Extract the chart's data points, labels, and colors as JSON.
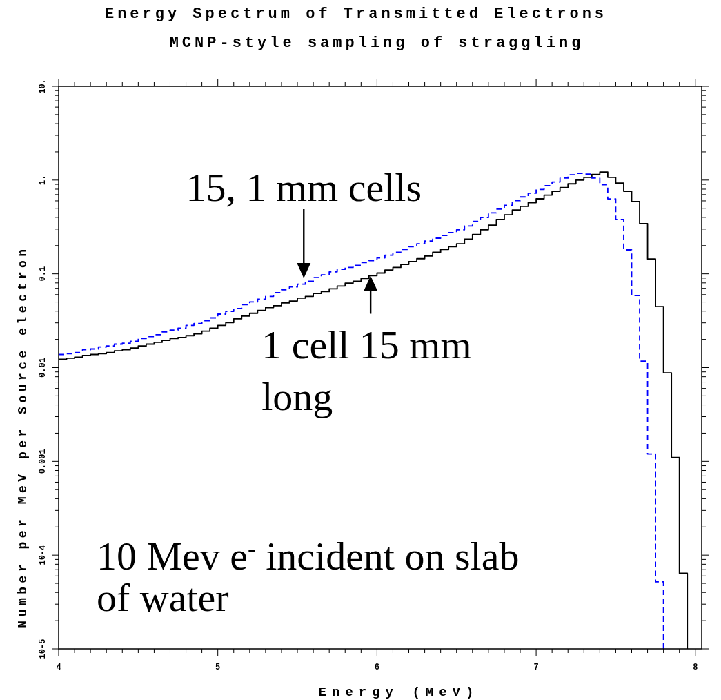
{
  "chart_data": {
    "type": "step",
    "title": "Energy Spectrum of Transmitted Electrons",
    "subtitle": "MCNP-style sampling of straggling",
    "xlabel": "Energy (MeV)",
    "ylabel": "Number per MeV per Source electron",
    "log": "y",
    "grid": false,
    "xlim": [
      4,
      8.04
    ],
    "ylim": [
      1e-05,
      10
    ],
    "xticks": [
      4,
      {
        "value": 4.1,
        "label": null
      },
      {
        "value": 4.2,
        "label": null
      },
      {
        "value": 4.3,
        "label": null
      },
      {
        "value": 4.4,
        "label": null
      },
      {
        "value": 4.5,
        "label": null
      },
      {
        "value": 4.6,
        "label": null
      },
      {
        "value": 4.7,
        "label": null
      },
      {
        "value": 4.8,
        "label": null
      },
      {
        "value": 4.9,
        "label": null
      },
      5,
      {
        "value": 5.1,
        "label": null
      },
      {
        "value": 5.2,
        "label": null
      },
      {
        "value": 5.3,
        "label": null
      },
      {
        "value": 5.4,
        "label": null
      },
      {
        "value": 5.5,
        "label": null
      },
      {
        "value": 5.6,
        "label": null
      },
      {
        "value": 5.7,
        "label": null
      },
      {
        "value": 5.8,
        "label": null
      },
      {
        "value": 5.9,
        "label": null
      },
      6,
      {
        "value": 6.1,
        "label": null
      },
      {
        "value": 6.2,
        "label": null
      },
      {
        "value": 6.3,
        "label": null
      },
      {
        "value": 6.4,
        "label": null
      },
      {
        "value": 6.5,
        "label": null
      },
      {
        "value": 6.6,
        "label": null
      },
      {
        "value": 6.7,
        "label": null
      },
      {
        "value": 6.8,
        "label": null
      },
      {
        "value": 6.9,
        "label": null
      },
      7,
      {
        "value": 7.1,
        "label": null
      },
      {
        "value": 7.2,
        "label": null
      },
      {
        "value": 7.3,
        "label": null
      },
      {
        "value": 7.4,
        "label": null
      },
      {
        "value": 7.5,
        "label": null
      },
      {
        "value": 7.6,
        "label": null
      },
      {
        "value": 7.7,
        "label": null
      },
      {
        "value": 7.8,
        "label": null
      },
      {
        "value": 7.9,
        "label": null
      },
      8
    ],
    "yticks": [
      {
        "value": 1e-05,
        "label": "10-5"
      },
      {
        "value": 2e-05,
        "label": null
      },
      {
        "value": 3e-05,
        "label": null
      },
      {
        "value": 4e-05,
        "label": null
      },
      {
        "value": 5e-05,
        "label": null
      },
      {
        "value": 6e-05,
        "label": null
      },
      {
        "value": 7e-05,
        "label": null
      },
      {
        "value": 8e-05,
        "label": null
      },
      {
        "value": 9e-05,
        "label": null
      },
      {
        "value": 0.0001,
        "label": "10-4"
      },
      {
        "value": 0.0002,
        "label": null
      },
      {
        "value": 0.0003,
        "label": null
      },
      {
        "value": 0.0004,
        "label": null
      },
      {
        "value": 0.0005,
        "label": null
      },
      {
        "value": 0.0006,
        "label": null
      },
      {
        "value": 0.0007,
        "label": null
      },
      {
        "value": 0.0008,
        "label": null
      },
      {
        "value": 0.0009,
        "label": null
      },
      {
        "value": 0.001,
        "label": "0.001"
      },
      {
        "value": 0.002,
        "label": null
      },
      {
        "value": 0.003,
        "label": null
      },
      {
        "value": 0.004,
        "label": null
      },
      {
        "value": 0.005,
        "label": null
      },
      {
        "value": 0.006,
        "label": null
      },
      {
        "value": 0.007,
        "label": null
      },
      {
        "value": 0.008,
        "label": null
      },
      {
        "value": 0.009,
        "label": null
      },
      {
        "value": 0.01,
        "label": "0.01"
      },
      {
        "value": 0.02,
        "label": null
      },
      {
        "value": 0.03,
        "label": null
      },
      {
        "value": 0.04,
        "label": null
      },
      {
        "value": 0.05,
        "label": null
      },
      {
        "value": 0.06,
        "label": null
      },
      {
        "value": 0.07,
        "label": null
      },
      {
        "value": 0.08,
        "label": null
      },
      {
        "value": 0.09,
        "label": null
      },
      {
        "value": 0.1,
        "label": "0.1"
      },
      {
        "value": 0.2,
        "label": null
      },
      {
        "value": 0.3,
        "label": null
      },
      {
        "value": 0.4,
        "label": null
      },
      {
        "value": 0.5,
        "label": null
      },
      {
        "value": 0.6,
        "label": null
      },
      {
        "value": 0.7,
        "label": null
      },
      {
        "value": 0.8,
        "label": null
      },
      {
        "value": 0.9,
        "label": null
      },
      {
        "value": 1,
        "label": "1."
      },
      {
        "value": 2,
        "label": null
      },
      {
        "value": 3,
        "label": null
      },
      {
        "value": 4,
        "label": null
      },
      {
        "value": 5,
        "label": null
      },
      {
        "value": 6,
        "label": null
      },
      {
        "value": 7,
        "label": null
      },
      {
        "value": 8,
        "label": null
      },
      {
        "value": 9,
        "label": null
      },
      {
        "value": 10,
        "label": "10."
      }
    ],
    "series": [
      {
        "color": "#000000",
        "line_style": "solid",
        "x": [
          4.0,
          4.05,
          4.1,
          4.15,
          4.2,
          4.25,
          4.3,
          4.35,
          4.4,
          4.45,
          4.5,
          4.55,
          4.6,
          4.65,
          4.7,
          4.75,
          4.8,
          4.85,
          4.9,
          4.95,
          5.0,
          5.05,
          5.1,
          5.15,
          5.2,
          5.25,
          5.3,
          5.35,
          5.4,
          5.45,
          5.5,
          5.55,
          5.6,
          5.65,
          5.7,
          5.75,
          5.8,
          5.85,
          5.9,
          5.95,
          6.0,
          6.05,
          6.1,
          6.15,
          6.2,
          6.25,
          6.3,
          6.35,
          6.4,
          6.45,
          6.5,
          6.55,
          6.6,
          6.65,
          6.7,
          6.75,
          6.8,
          6.85,
          6.9,
          6.95,
          7.0,
          7.05,
          7.1,
          7.15,
          7.2,
          7.25,
          7.3,
          7.35,
          7.4,
          7.45,
          7.5,
          7.55,
          7.6,
          7.65,
          7.7,
          7.75,
          7.8,
          7.85,
          7.9,
          7.95
        ],
        "values": [
          0.0123,
          0.0126,
          0.0129,
          0.0135,
          0.0138,
          0.0141,
          0.0145,
          0.0151,
          0.0155,
          0.0162,
          0.017,
          0.0178,
          0.0186,
          0.0195,
          0.0204,
          0.0209,
          0.0219,
          0.0229,
          0.0245,
          0.0263,
          0.0282,
          0.0302,
          0.0331,
          0.0355,
          0.038,
          0.0407,
          0.0437,
          0.0457,
          0.049,
          0.0513,
          0.055,
          0.0575,
          0.0617,
          0.0646,
          0.0692,
          0.0741,
          0.0794,
          0.0832,
          0.0891,
          0.0955,
          0.102,
          0.11,
          0.117,
          0.126,
          0.135,
          0.145,
          0.155,
          0.17,
          0.182,
          0.195,
          0.209,
          0.234,
          0.263,
          0.295,
          0.331,
          0.38,
          0.427,
          0.479,
          0.525,
          0.575,
          0.631,
          0.692,
          0.759,
          0.832,
          0.912,
          1.0,
          1.07,
          1.15,
          1.22,
          1.07,
          0.93,
          0.76,
          0.59,
          0.343,
          0.144,
          0.0448,
          0.0088,
          0.0011,
          6.4e-05,
          1e-05
        ]
      },
      {
        "color": "#0000ff",
        "line_style": "dashed",
        "x": [
          4.0,
          4.05,
          4.1,
          4.15,
          4.2,
          4.25,
          4.3,
          4.35,
          4.4,
          4.45,
          4.5,
          4.55,
          4.6,
          4.65,
          4.7,
          4.75,
          4.8,
          4.85,
          4.9,
          4.95,
          5.0,
          5.05,
          5.1,
          5.15,
          5.2,
          5.25,
          5.3,
          5.35,
          5.4,
          5.45,
          5.5,
          5.55,
          5.6,
          5.65,
          5.7,
          5.75,
          5.8,
          5.85,
          5.9,
          5.95,
          6.0,
          6.05,
          6.1,
          6.15,
          6.2,
          6.25,
          6.3,
          6.35,
          6.4,
          6.45,
          6.5,
          6.55,
          6.6,
          6.65,
          6.7,
          6.75,
          6.8,
          6.85,
          6.9,
          6.95,
          7.0,
          7.05,
          7.1,
          7.15,
          7.2,
          7.25,
          7.3,
          7.35,
          7.4,
          7.45,
          7.5,
          7.55,
          7.6,
          7.65,
          7.7,
          7.75,
          7.8
        ],
        "values": [
          0.0138,
          0.0141,
          0.0145,
          0.0155,
          0.0158,
          0.0166,
          0.017,
          0.0178,
          0.0182,
          0.0191,
          0.0204,
          0.0214,
          0.0224,
          0.024,
          0.0251,
          0.0263,
          0.0282,
          0.0295,
          0.0316,
          0.0339,
          0.0372,
          0.0398,
          0.0427,
          0.0468,
          0.0501,
          0.0537,
          0.0575,
          0.0631,
          0.0676,
          0.0724,
          0.0776,
          0.0832,
          0.0912,
          0.0977,
          0.105,
          0.112,
          0.117,
          0.123,
          0.132,
          0.138,
          0.148,
          0.158,
          0.17,
          0.182,
          0.195,
          0.209,
          0.224,
          0.24,
          0.257,
          0.275,
          0.295,
          0.324,
          0.363,
          0.398,
          0.447,
          0.49,
          0.537,
          0.603,
          0.661,
          0.724,
          0.794,
          0.871,
          0.955,
          1.05,
          1.14,
          1.18,
          1.16,
          1.05,
          0.89,
          0.63,
          0.38,
          0.18,
          0.0587,
          0.0117,
          0.0012,
          5.2e-05,
          1e-05
        ]
      }
    ],
    "annotations": [
      {
        "text": "15, 1 mm cells",
        "x": 5.54,
        "y": 0.09
      },
      {
        "text": "1 cell 15 mm long",
        "x": 5.96,
        "y": 0.0955
      },
      "10 Mev e$^{-}$ incident on slab of water"
    ]
  }
}
